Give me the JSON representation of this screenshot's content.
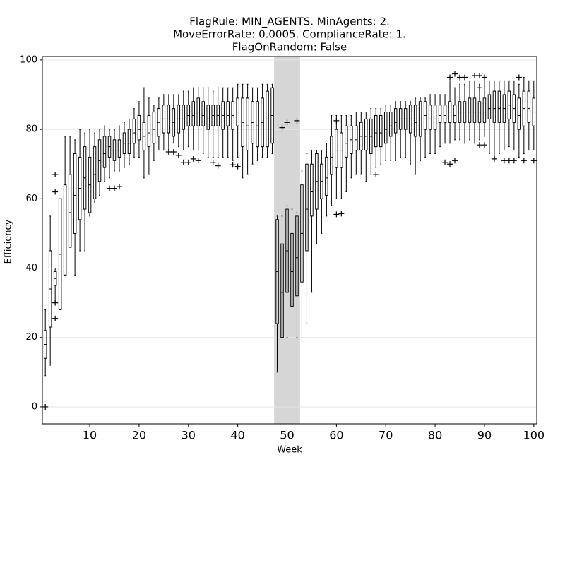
{
  "chart_data": {
    "type": "box",
    "title": [
      "FlagRule: MIN_AGENTS. MinAgents: 2.",
      "MoveErrorRate: 0.0005. ComplianceRate: 1.",
      "FlagOnRandom: False"
    ],
    "x_label": "Week",
    "y_label": "Efficiency",
    "xlim": [
      0.4,
      100.6
    ],
    "ylim": [
      -4.9,
      101
    ],
    "xticks": [
      10,
      20,
      30,
      40,
      50,
      60,
      70,
      80,
      90,
      100
    ],
    "yticks": [
      0,
      20,
      40,
      60,
      80,
      100
    ],
    "grid": true,
    "color": "#000000",
    "shade_color": "#d6d6d6",
    "shaded_xspan": [
      47.5,
      52.5
    ],
    "x": [
      1,
      2,
      3,
      4,
      5,
      6,
      7,
      8,
      9,
      10,
      11,
      12,
      13,
      14,
      15,
      16,
      17,
      18,
      19,
      20,
      21,
      22,
      23,
      24,
      25,
      26,
      27,
      28,
      29,
      30,
      31,
      32,
      33,
      34,
      35,
      36,
      37,
      38,
      39,
      40,
      41,
      42,
      43,
      44,
      45,
      46,
      47,
      48,
      49,
      50,
      51,
      52,
      53,
      54,
      55,
      56,
      57,
      58,
      59,
      60,
      61,
      62,
      63,
      64,
      65,
      66,
      67,
      68,
      69,
      70,
      71,
      72,
      73,
      74,
      75,
      76,
      77,
      78,
      79,
      80,
      81,
      82,
      83,
      84,
      85,
      86,
      87,
      88,
      89,
      90,
      91,
      92,
      93,
      94,
      95,
      96,
      97,
      98,
      99,
      100
    ],
    "whisker_low": [
      9,
      12,
      30,
      28,
      38,
      46,
      38,
      45,
      45,
      55,
      59,
      61,
      65,
      66,
      68,
      68,
      69,
      70,
      72,
      72,
      66,
      67,
      71,
      74,
      74,
      74,
      76,
      75,
      74,
      75,
      74,
      74,
      73,
      72,
      72,
      72,
      72,
      72,
      71,
      72,
      66,
      67,
      70,
      71,
      72,
      72,
      73,
      10,
      20,
      20,
      29,
      20,
      19,
      24,
      33,
      47,
      50,
      55,
      58,
      60,
      60,
      62,
      66,
      67,
      67,
      65,
      67,
      69,
      70,
      71,
      71,
      71,
      72,
      72,
      70,
      67,
      71,
      72,
      73,
      73,
      75,
      76,
      76,
      77,
      77,
      76,
      77,
      76,
      77,
      78,
      73,
      72,
      73,
      74,
      75,
      74,
      72,
      73,
      74,
      74
    ],
    "q1": [
      14,
      23,
      35,
      28,
      38,
      46,
      50,
      54,
      57,
      56,
      60,
      65,
      69,
      72,
      71,
      72,
      73,
      73,
      76,
      77,
      74,
      75,
      76,
      78,
      79,
      79,
      78,
      79,
      80,
      81,
      81,
      81,
      81,
      80,
      81,
      81,
      80,
      81,
      80,
      81,
      75,
      74,
      76,
      75,
      75,
      75,
      76,
      24,
      20,
      33,
      29,
      32,
      36,
      45,
      55,
      57,
      60,
      61,
      67,
      69,
      69,
      72,
      73,
      74,
      74,
      74,
      73,
      75,
      75,
      76,
      78,
      79,
      80,
      80,
      79,
      78,
      78,
      80,
      80,
      80,
      82,
      82,
      82,
      82,
      82,
      82,
      82,
      82,
      82,
      82,
      83,
      82,
      82,
      82,
      83,
      82,
      80,
      81,
      82,
      81
    ],
    "median": [
      18,
      34,
      37,
      44,
      51,
      56,
      61,
      63,
      66,
      64,
      67,
      71,
      73,
      75,
      74,
      74,
      76,
      76,
      79,
      80,
      78,
      79,
      80,
      82,
      83,
      83,
      82,
      83,
      83,
      84,
      84,
      85,
      84,
      83,
      84,
      84,
      84,
      84,
      84,
      85,
      82,
      81,
      82,
      81,
      82,
      83,
      84,
      39,
      33,
      45,
      39,
      43,
      50,
      57,
      62,
      65,
      65,
      66,
      72,
      74,
      74,
      76,
      77,
      77,
      78,
      78,
      78,
      79,
      79,
      80,
      81,
      82,
      83,
      83,
      83,
      82,
      83,
      84,
      83,
      83,
      84,
      84,
      85,
      84,
      85,
      85,
      85,
      85,
      85,
      85,
      86,
      86,
      86,
      86,
      87,
      86,
      84,
      86,
      86,
      85
    ],
    "q3": [
      22,
      45,
      39,
      60,
      64,
      67,
      73,
      72,
      75,
      72,
      75,
      77,
      78,
      78,
      77,
      77,
      79,
      80,
      83,
      84,
      82,
      84,
      85,
      86,
      87,
      87,
      86,
      87,
      87,
      87,
      88,
      89,
      88,
      87,
      87,
      87,
      88,
      88,
      88,
      89,
      89,
      89,
      88,
      88,
      89,
      91,
      92,
      54,
      47,
      57,
      50,
      55,
      64,
      70,
      70,
      73,
      70,
      72,
      78,
      80,
      79,
      81,
      81,
      81,
      82,
      83,
      83,
      84,
      84,
      85,
      85,
      86,
      86,
      86,
      87,
      87,
      88,
      88,
      87,
      87,
      87,
      87,
      88,
      87,
      88,
      88,
      89,
      89,
      88,
      89,
      90,
      91,
      91,
      90,
      91,
      90,
      89,
      91,
      91,
      89
    ],
    "whisker_high": [
      28,
      55,
      40,
      60,
      78,
      78,
      77,
      80,
      79,
      80,
      79,
      80,
      81,
      80,
      80,
      81,
      82,
      83,
      86,
      88,
      92,
      89,
      87,
      89,
      90,
      90,
      90,
      90,
      91,
      91,
      92,
      92,
      92,
      92,
      91,
      92,
      92,
      92,
      92,
      93,
      93,
      93,
      92,
      92,
      93,
      93,
      93,
      55,
      55,
      58,
      57,
      56,
      68,
      73,
      74,
      74,
      74,
      76,
      84,
      84,
      84,
      84,
      84,
      85,
      85,
      85,
      86,
      86,
      86,
      87,
      87,
      88,
      88,
      88,
      88,
      89,
      89,
      89,
      90,
      90,
      90,
      90,
      94,
      92,
      93,
      93,
      94,
      94,
      93,
      94,
      94,
      94,
      94,
      94,
      94,
      94,
      93,
      95,
      94,
      94
    ],
    "outliers": [
      [
        1,
        0
      ],
      [
        3,
        67
      ],
      [
        3,
        62
      ],
      [
        3,
        30
      ],
      [
        3,
        25.5
      ],
      [
        14,
        63
      ],
      [
        15,
        63
      ],
      [
        16,
        63.5
      ],
      [
        26,
        73.5
      ],
      [
        27,
        73.5
      ],
      [
        28,
        72.5
      ],
      [
        29,
        70.5
      ],
      [
        30,
        70.5
      ],
      [
        31,
        71.5
      ],
      [
        32,
        71
      ],
      [
        35,
        70.5
      ],
      [
        36,
        69.5
      ],
      [
        39,
        69.8
      ],
      [
        40,
        69.3
      ],
      [
        49,
        80.5
      ],
      [
        50,
        82
      ],
      [
        52,
        82.5
      ],
      [
        60,
        82.5
      ],
      [
        60,
        55.5
      ],
      [
        61,
        55.7
      ],
      [
        68,
        67
      ],
      [
        82,
        70.5
      ],
      [
        83,
        70
      ],
      [
        84,
        71
      ],
      [
        83,
        95
      ],
      [
        84,
        96
      ],
      [
        85,
        95
      ],
      [
        86,
        95
      ],
      [
        88,
        95.5
      ],
      [
        89,
        95.5
      ],
      [
        90,
        95
      ],
      [
        89,
        92
      ],
      [
        89,
        75.5
      ],
      [
        90,
        75.5
      ],
      [
        92,
        71.5
      ],
      [
        94,
        71
      ],
      [
        95,
        71
      ],
      [
        96,
        71
      ],
      [
        97,
        95
      ],
      [
        98,
        71
      ],
      [
        100,
        71
      ]
    ]
  }
}
